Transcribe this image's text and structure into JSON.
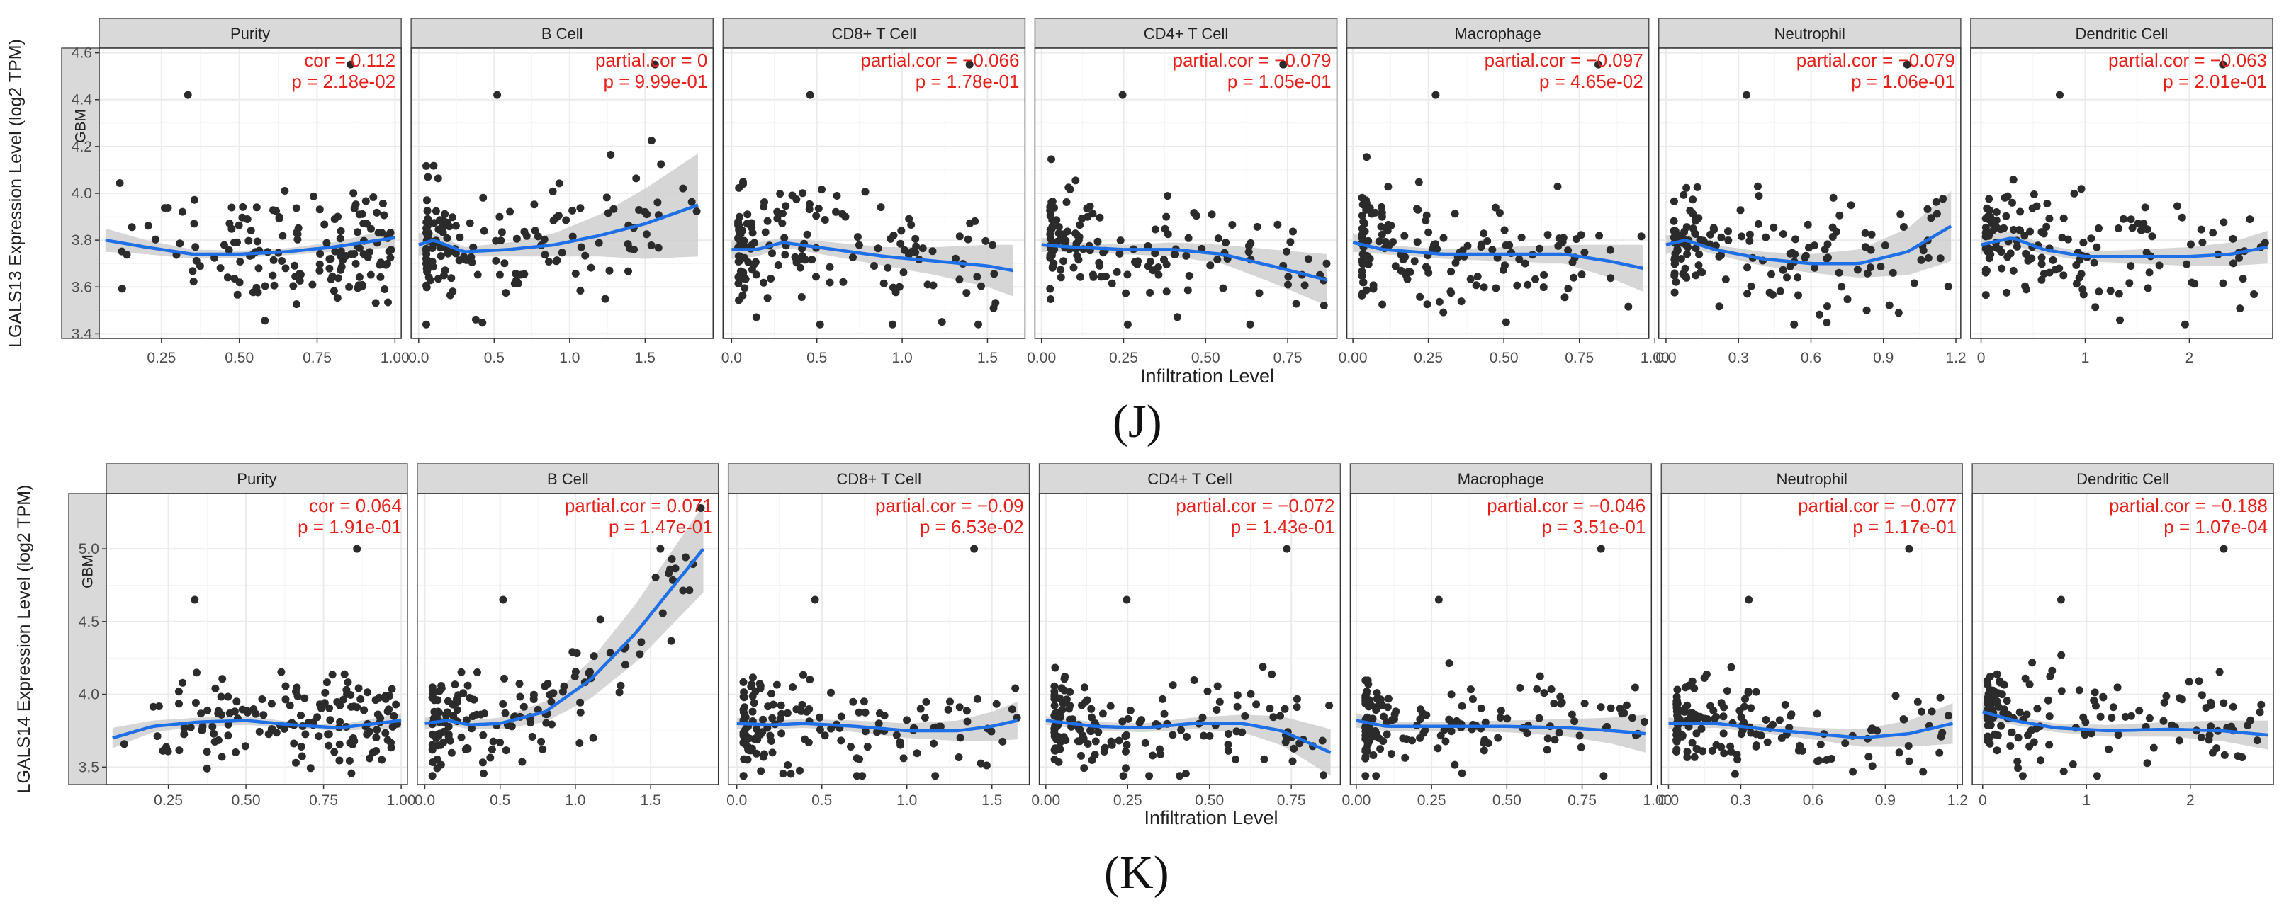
{
  "strip_label": "GBM",
  "xlabel": "Infiltration Level",
  "colors": {
    "points": "#2b2b2b",
    "fit": "#1f6fe6",
    "band": "#cfcfcf",
    "stats": "#e8201a",
    "strip": "#d9d9d9"
  },
  "chart_data": [
    {
      "id": "J",
      "caption": "(J)",
      "type": "scatter",
      "ylabel": "LGALS13 Expression Level (log2 TPM)",
      "xlabel": "Infiltration Level",
      "strip_label": "GBM",
      "ylim": [
        3.38,
        4.62
      ],
      "yticks": [
        3.4,
        3.6,
        3.8,
        4.0,
        4.2,
        4.4,
        4.6
      ],
      "ytick_labels": [
        "3.4",
        "3.6",
        "3.8",
        "4.0",
        "4.2",
        "4.4",
        "4.6"
      ],
      "panels": [
        {
          "name": "Purity",
          "xlim": [
            0.05,
            1.02
          ],
          "xticks": [
            0.25,
            0.5,
            0.75,
            1.0
          ],
          "xtick_labels": [
            "0.25",
            "0.50",
            "0.75",
            "1.00"
          ],
          "stat1": "cor = 0.112",
          "stat2": "p = 2.18e-02",
          "fit": [
            [
              0.07,
              3.8
            ],
            [
              0.2,
              3.77
            ],
            [
              0.35,
              3.74
            ],
            [
              0.5,
              3.74
            ],
            [
              0.65,
              3.75
            ],
            [
              0.8,
              3.77
            ],
            [
              1.0,
              3.81
            ]
          ],
          "band": [
            0.05,
            0.03,
            0.02,
            0.015,
            0.015,
            0.02,
            0.04
          ]
        },
        {
          "name": "B Cell",
          "xlim": [
            -0.05,
            1.95
          ],
          "xticks": [
            0.0,
            0.5,
            1.0,
            1.5
          ],
          "xtick_labels": [
            "0.0",
            "0.5",
            "1.0",
            "1.5"
          ],
          "stat1": "partial.cor = 0",
          "stat2": "p = 9.99e-01",
          "fit": [
            [
              0.0,
              3.78
            ],
            [
              0.1,
              3.8
            ],
            [
              0.3,
              3.75
            ],
            [
              0.6,
              3.76
            ],
            [
              0.9,
              3.78
            ],
            [
              1.2,
              3.82
            ],
            [
              1.5,
              3.87
            ],
            [
              1.85,
              3.95
            ]
          ],
          "band": [
            0.05,
            0.03,
            0.02,
            0.03,
            0.05,
            0.09,
            0.15,
            0.22
          ]
        },
        {
          "name": "CD8+ T Cell",
          "xlim": [
            -0.05,
            1.72
          ],
          "xticks": [
            0.0,
            0.5,
            1.0,
            1.5
          ],
          "xtick_labels": [
            "0.0",
            "0.5",
            "1.0",
            "1.5"
          ],
          "stat1": "partial.cor = −0.066",
          "stat2": "p = 1.78e-01",
          "fit": [
            [
              0.0,
              3.76
            ],
            [
              0.15,
              3.76
            ],
            [
              0.3,
              3.79
            ],
            [
              0.6,
              3.76
            ],
            [
              0.9,
              3.73
            ],
            [
              1.2,
              3.71
            ],
            [
              1.5,
              3.69
            ],
            [
              1.65,
              3.67
            ]
          ],
          "band": [
            0.04,
            0.03,
            0.02,
            0.03,
            0.04,
            0.06,
            0.09,
            0.11
          ]
        },
        {
          "name": "CD4+ T Cell",
          "xlim": [
            -0.02,
            0.9
          ],
          "xticks": [
            0.0,
            0.25,
            0.5,
            0.75
          ],
          "xtick_labels": [
            "0.00",
            "0.25",
            "0.50",
            "0.75"
          ],
          "stat1": "partial.cor = −0.079",
          "stat2": "p = 1.05e-01",
          "fit": [
            [
              0.0,
              3.78
            ],
            [
              0.1,
              3.77
            ],
            [
              0.25,
              3.76
            ],
            [
              0.4,
              3.76
            ],
            [
              0.55,
              3.74
            ],
            [
              0.7,
              3.69
            ],
            [
              0.87,
              3.63
            ]
          ],
          "band": [
            0.03,
            0.02,
            0.02,
            0.03,
            0.04,
            0.07,
            0.11
          ]
        },
        {
          "name": "Macrophage",
          "xlim": [
            -0.02,
            0.98
          ],
          "xticks": [
            0.0,
            0.25,
            0.5,
            0.75,
            1.0
          ],
          "xtick_labels": [
            "0.00",
            "0.25",
            "0.50",
            "0.75",
            "1.00"
          ],
          "stat1": "partial.cor = −0.097",
          "stat2": "p = 4.65e-02",
          "fit": [
            [
              0.0,
              3.79
            ],
            [
              0.1,
              3.76
            ],
            [
              0.3,
              3.74
            ],
            [
              0.5,
              3.74
            ],
            [
              0.7,
              3.74
            ],
            [
              0.85,
              3.71
            ],
            [
              0.96,
              3.68
            ]
          ],
          "band": [
            0.04,
            0.02,
            0.02,
            0.03,
            0.04,
            0.07,
            0.1
          ]
        },
        {
          "name": "Neutrophil",
          "xlim": [
            -0.03,
            1.22
          ],
          "xticks": [
            0.0,
            0.3,
            0.6,
            0.9,
            1.2
          ],
          "xtick_labels": [
            "0.0",
            "0.3",
            "0.6",
            "0.9",
            "1.2"
          ],
          "stat1": "partial.cor = −0.079",
          "stat2": "p = 1.06e-01",
          "fit": [
            [
              0.0,
              3.78
            ],
            [
              0.08,
              3.8
            ],
            [
              0.2,
              3.76
            ],
            [
              0.4,
              3.72
            ],
            [
              0.6,
              3.7
            ],
            [
              0.8,
              3.7
            ],
            [
              1.0,
              3.75
            ],
            [
              1.18,
              3.86
            ]
          ],
          "band": [
            0.04,
            0.03,
            0.02,
            0.03,
            0.04,
            0.06,
            0.1,
            0.15
          ]
        },
        {
          "name": "Dendritic Cell",
          "xlim": [
            -0.1,
            2.8
          ],
          "xticks": [
            0,
            1,
            2
          ],
          "xtick_labels": [
            "0",
            "1",
            "2"
          ],
          "stat1": "partial.cor = −0.063",
          "stat2": "p = 2.01e-01",
          "fit": [
            [
              0.0,
              3.78
            ],
            [
              0.3,
              3.81
            ],
            [
              0.6,
              3.76
            ],
            [
              1.0,
              3.73
            ],
            [
              1.5,
              3.73
            ],
            [
              2.0,
              3.73
            ],
            [
              2.4,
              3.74
            ],
            [
              2.75,
              3.77
            ]
          ],
          "band": [
            0.04,
            0.03,
            0.02,
            0.02,
            0.03,
            0.04,
            0.05,
            0.07
          ]
        }
      ]
    },
    {
      "id": "K",
      "caption": "(K)",
      "type": "scatter",
      "ylabel": "LGALS14 Expression Level (log2 TPM)",
      "xlabel": "Infiltration Level",
      "strip_label": "GBM",
      "ylim": [
        3.38,
        5.38
      ],
      "yticks": [
        3.5,
        4.0,
        4.5,
        5.0
      ],
      "ytick_labels": [
        "3.5",
        "4.0",
        "4.5",
        "5.0"
      ],
      "panels": [
        {
          "name": "Purity",
          "xlim": [
            0.05,
            1.02
          ],
          "xticks": [
            0.25,
            0.5,
            0.75,
            1.0
          ],
          "xtick_labels": [
            "0.25",
            "0.50",
            "0.75",
            "1.00"
          ],
          "stat1": "cor = 0.064",
          "stat2": "p = 1.91e-01",
          "fit": [
            [
              0.07,
              3.7
            ],
            [
              0.2,
              3.78
            ],
            [
              0.35,
              3.81
            ],
            [
              0.5,
              3.82
            ],
            [
              0.65,
              3.79
            ],
            [
              0.8,
              3.77
            ],
            [
              1.0,
              3.82
            ]
          ],
          "band": [
            0.07,
            0.04,
            0.03,
            0.03,
            0.02,
            0.02,
            0.05
          ]
        },
        {
          "name": "B Cell",
          "xlim": [
            -0.05,
            1.95
          ],
          "xticks": [
            0.0,
            0.5,
            1.0,
            1.5
          ],
          "xtick_labels": [
            "0.0",
            "0.5",
            "1.0",
            "1.5"
          ],
          "stat1": "partial.cor = 0.071",
          "stat2": "p = 1.47e-01",
          "fit": [
            [
              0.0,
              3.8
            ],
            [
              0.15,
              3.82
            ],
            [
              0.3,
              3.79
            ],
            [
              0.5,
              3.8
            ],
            [
              0.8,
              3.88
            ],
            [
              1.1,
              4.1
            ],
            [
              1.4,
              4.42
            ],
            [
              1.85,
              5.0
            ]
          ],
          "band": [
            0.04,
            0.03,
            0.03,
            0.04,
            0.07,
            0.13,
            0.2,
            0.3
          ]
        },
        {
          "name": "CD8+ T Cell",
          "xlim": [
            -0.05,
            1.72
          ],
          "xticks": [
            0.0,
            0.5,
            1.0,
            1.5
          ],
          "xtick_labels": [
            "0.0",
            "0.5",
            "1.0",
            "1.5"
          ],
          "stat1": "partial.cor = −0.09",
          "stat2": "p = 6.53e-02",
          "fit": [
            [
              0.0,
              3.8
            ],
            [
              0.2,
              3.79
            ],
            [
              0.4,
              3.8
            ],
            [
              0.7,
              3.78
            ],
            [
              1.0,
              3.75
            ],
            [
              1.3,
              3.75
            ],
            [
              1.5,
              3.78
            ],
            [
              1.65,
              3.82
            ]
          ],
          "band": [
            0.04,
            0.03,
            0.03,
            0.04,
            0.05,
            0.07,
            0.1,
            0.13
          ]
        },
        {
          "name": "CD4+ T Cell",
          "xlim": [
            -0.02,
            0.9
          ],
          "xticks": [
            0.0,
            0.25,
            0.5,
            0.75
          ],
          "xtick_labels": [
            "0.00",
            "0.25",
            "0.50",
            "0.75"
          ],
          "stat1": "partial.cor = −0.072",
          "stat2": "p = 1.43e-01",
          "fit": [
            [
              0.0,
              3.82
            ],
            [
              0.15,
              3.78
            ],
            [
              0.3,
              3.77
            ],
            [
              0.45,
              3.8
            ],
            [
              0.6,
              3.8
            ],
            [
              0.72,
              3.75
            ],
            [
              0.87,
              3.6
            ]
          ],
          "band": [
            0.03,
            0.03,
            0.03,
            0.04,
            0.06,
            0.1,
            0.16
          ]
        },
        {
          "name": "Macrophage",
          "xlim": [
            -0.02,
            0.98
          ],
          "xticks": [
            0.0,
            0.25,
            0.5,
            0.75,
            1.0
          ],
          "xtick_labels": [
            "0.00",
            "0.25",
            "0.50",
            "0.75",
            "1.00"
          ],
          "stat1": "partial.cor = −0.046",
          "stat2": "p = 3.51e-01",
          "fit": [
            [
              0.0,
              3.82
            ],
            [
              0.1,
              3.78
            ],
            [
              0.3,
              3.78
            ],
            [
              0.5,
              3.78
            ],
            [
              0.7,
              3.77
            ],
            [
              0.85,
              3.75
            ],
            [
              0.96,
              3.73
            ]
          ],
          "band": [
            0.05,
            0.03,
            0.03,
            0.04,
            0.06,
            0.09,
            0.13
          ]
        },
        {
          "name": "Neutrophil",
          "xlim": [
            -0.03,
            1.22
          ],
          "xticks": [
            0.0,
            0.3,
            0.6,
            0.9,
            1.2
          ],
          "xtick_labels": [
            "0.0",
            "0.3",
            "0.6",
            "0.9",
            "1.2"
          ],
          "stat1": "partial.cor = −0.077",
          "stat2": "p = 1.17e-01",
          "fit": [
            [
              0.0,
              3.8
            ],
            [
              0.2,
              3.8
            ],
            [
              0.4,
              3.76
            ],
            [
              0.6,
              3.73
            ],
            [
              0.8,
              3.7
            ],
            [
              1.0,
              3.73
            ],
            [
              1.18,
              3.8
            ]
          ],
          "band": [
            0.04,
            0.03,
            0.03,
            0.04,
            0.06,
            0.09,
            0.14
          ]
        },
        {
          "name": "Dendritic Cell",
          "xlim": [
            -0.1,
            2.8
          ],
          "xticks": [
            0,
            1,
            2
          ],
          "xtick_labels": [
            "0",
            "1",
            "2"
          ],
          "stat1": "partial.cor = −0.188",
          "stat2": "p = 1.07e-04",
          "fit": [
            [
              0.0,
              3.88
            ],
            [
              0.3,
              3.82
            ],
            [
              0.7,
              3.77
            ],
            [
              1.2,
              3.75
            ],
            [
              1.8,
              3.76
            ],
            [
              2.3,
              3.75
            ],
            [
              2.75,
              3.72
            ]
          ],
          "band": [
            0.05,
            0.03,
            0.03,
            0.04,
            0.05,
            0.07,
            0.1
          ]
        }
      ]
    }
  ]
}
